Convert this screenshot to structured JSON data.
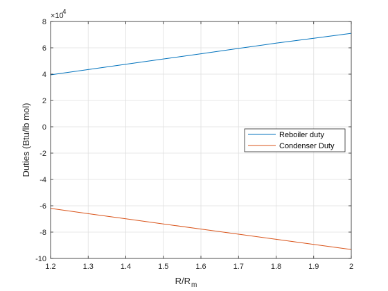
{
  "chart_data": {
    "type": "line",
    "title": "",
    "xlabel": "R/R",
    "xlabel_subscript": "m",
    "ylabel": "Duties (Btu/lb mol)",
    "y_multiplier_base": "×10",
    "y_multiplier_exponent": "4",
    "xlim": [
      1.2,
      2.0
    ],
    "ylim": [
      -10,
      8
    ],
    "x_ticks": [
      1.2,
      1.3,
      1.4,
      1.5,
      1.6,
      1.7,
      1.8,
      1.9,
      2.0
    ],
    "x_tick_labels": [
      "1.2",
      "1.3",
      "1.4",
      "1.5",
      "1.6",
      "1.7",
      "1.8",
      "1.9",
      "2"
    ],
    "y_ticks": [
      -10,
      -8,
      -6,
      -4,
      -2,
      0,
      2,
      4,
      6,
      8
    ],
    "y_tick_labels": [
      "-10",
      "-8",
      "-6",
      "-4",
      "-2",
      "0",
      "2",
      "4",
      "6",
      "8"
    ],
    "grid": true,
    "legend_position": "right",
    "series": [
      {
        "name": "Reboiler duty",
        "color": "#0072bd",
        "x": [
          1.2,
          1.3,
          1.4,
          1.5,
          1.6,
          1.7,
          1.8,
          1.9,
          2.0
        ],
        "y": [
          3.95,
          4.35,
          4.75,
          5.15,
          5.55,
          5.95,
          6.35,
          6.72,
          7.1
        ]
      },
      {
        "name": "Condenser Duty",
        "color": "#d95319",
        "x": [
          1.2,
          1.3,
          1.4,
          1.5,
          1.6,
          1.7,
          1.8,
          1.9,
          2.0
        ],
        "y": [
          -6.2,
          -6.6,
          -6.99,
          -7.38,
          -7.77,
          -8.16,
          -8.55,
          -8.93,
          -9.32
        ]
      }
    ]
  }
}
